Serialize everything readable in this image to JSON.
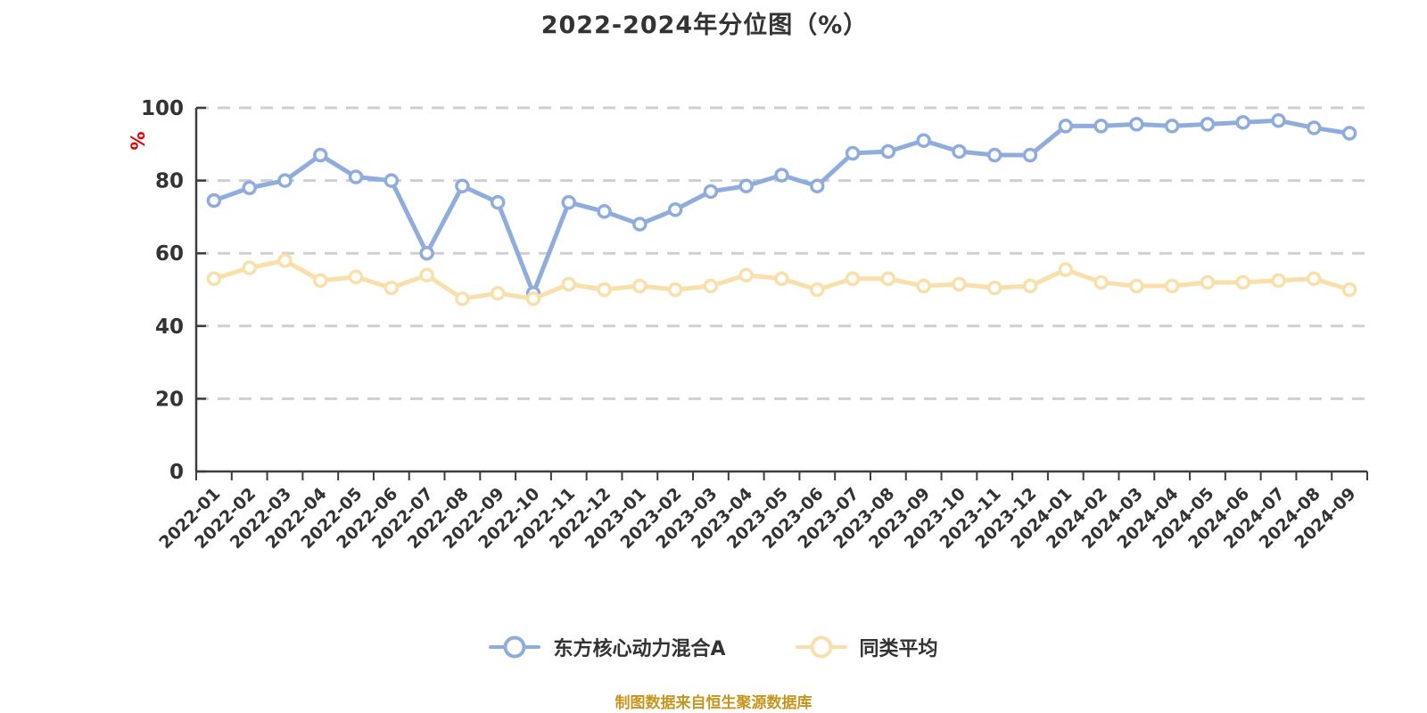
{
  "title": "2022-2024年分位图（%）",
  "y_axis_unit": "%",
  "footer": "制图数据来自恒生聚源数据库",
  "colors": {
    "series_fund": "#8faddc",
    "series_avg": "#f9dfa9",
    "grid": "#cfcfcf",
    "axis": "#3d3d3d",
    "tick_label": "#333333",
    "unit_label": "#e60000",
    "footer_text": "#c6951f",
    "background": "#ffffff",
    "marker_fill": "#ffffff"
  },
  "legend": {
    "position": "bottom",
    "items": [
      {
        "label": "东方核心动力混合A"
      },
      {
        "label": "同类平均"
      }
    ]
  },
  "chart_data": {
    "type": "line",
    "title": "2022-2024年分位图（%）",
    "xlabel": "",
    "ylabel": "%",
    "ylim": [
      0,
      100
    ],
    "yticks": [
      0,
      20,
      40,
      60,
      80,
      100
    ],
    "grid": "horizontal-dashed",
    "legend_position": "bottom",
    "x_label_rotation": 45,
    "x": [
      "2022-01",
      "2022-02",
      "2022-03",
      "2022-04",
      "2022-05",
      "2022-06",
      "2022-07",
      "2022-08",
      "2022-09",
      "2022-10",
      "2022-11",
      "2022-12",
      "2023-01",
      "2023-02",
      "2023-03",
      "2023-04",
      "2023-05",
      "2023-06",
      "2023-07",
      "2023-08",
      "2023-09",
      "2023-10",
      "2023-11",
      "2023-12",
      "2024-01",
      "2024-02",
      "2024-03",
      "2024-04",
      "2024-05",
      "2024-06",
      "2024-07",
      "2024-08",
      "2024-09"
    ],
    "series": [
      {
        "name": "东方核心动力混合A",
        "color": "#8faddc",
        "values": [
          74.5,
          78,
          80,
          87,
          81,
          80,
          60,
          78.5,
          74,
          49,
          74,
          71.5,
          68,
          72,
          77,
          78.5,
          81.5,
          78.5,
          87.5,
          88,
          91,
          88,
          87,
          87,
          95,
          95,
          95.5,
          95,
          95.5,
          96,
          96.5,
          94.5,
          93
        ]
      },
      {
        "name": "同类平均",
        "color": "#f9dfa9",
        "values": [
          53,
          56,
          58,
          52.5,
          53.5,
          50.5,
          54,
          47.5,
          49,
          47.5,
          51.5,
          50,
          51,
          50,
          51,
          54,
          53,
          50,
          53,
          53,
          51,
          51.5,
          50.5,
          51,
          55.5,
          52,
          51,
          51,
          52,
          52,
          52.5,
          53,
          50
        ]
      }
    ]
  }
}
